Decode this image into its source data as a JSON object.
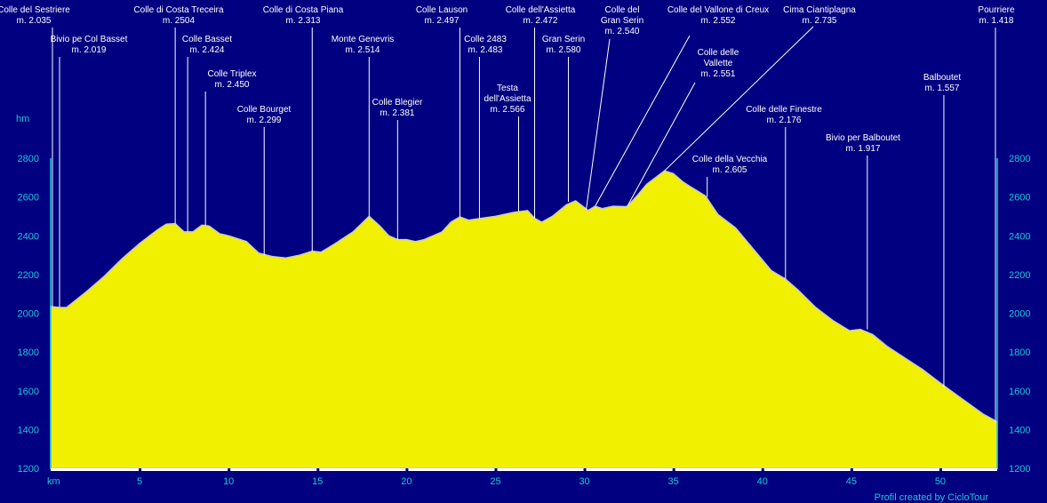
{
  "chart_data": {
    "type": "area",
    "title": "",
    "xlabel": "km",
    "ylabel": "hm",
    "credit": "Profil created by CicloTour",
    "xlim": [
      0,
      53.2
    ],
    "ylim": [
      1200,
      2800
    ],
    "x_ticks": [
      5,
      10,
      15,
      20,
      25,
      30,
      35,
      40,
      45,
      50
    ],
    "y_ticks": [
      1200,
      1400,
      1600,
      1800,
      2000,
      2200,
      2400,
      2600,
      2800
    ],
    "colors": {
      "background": "#000080",
      "fill": "#f0f000",
      "accent": "#19c7d9",
      "text": "#ffffff"
    },
    "profile": {
      "x": [
        0,
        0.5,
        0.9,
        2,
        3,
        4,
        5,
        6,
        6.5,
        7,
        7.5,
        8,
        8.5,
        8.9,
        9.5,
        10,
        11,
        11.7,
        12.5,
        13.2,
        14,
        14.7,
        15.2,
        16,
        17,
        17.9,
        18.5,
        19,
        19.5,
        20,
        20.5,
        21,
        22,
        22.5,
        23,
        23.5,
        24,
        25,
        26,
        26.8,
        27.2,
        27.6,
        28.2,
        29,
        29.5,
        30,
        30.2,
        30.6,
        31,
        31.6,
        32.4,
        33,
        33.5,
        34,
        34.5,
        35,
        35.5,
        36,
        36.8,
        37.5,
        38.5,
        39.5,
        40.5,
        41.3,
        42,
        43,
        44,
        44.9,
        45.5,
        46.2,
        47,
        48,
        49,
        50,
        50.6,
        51.5,
        52.4,
        53.2
      ],
      "y": [
        2035,
        2030,
        2030,
        2110,
        2190,
        2280,
        2360,
        2430,
        2460,
        2462,
        2420,
        2420,
        2455,
        2450,
        2410,
        2400,
        2370,
        2310,
        2292,
        2285,
        2300,
        2320,
        2315,
        2360,
        2420,
        2500,
        2450,
        2400,
        2380,
        2380,
        2370,
        2380,
        2420,
        2470,
        2497,
        2480,
        2487,
        2500,
        2520,
        2530,
        2490,
        2470,
        2500,
        2560,
        2580,
        2545,
        2530,
        2552,
        2540,
        2552,
        2550,
        2610,
        2665,
        2700,
        2735,
        2720,
        2680,
        2650,
        2605,
        2510,
        2440,
        2330,
        2220,
        2176,
        2120,
        2030,
        1960,
        1910,
        1917,
        1890,
        1830,
        1770,
        1710,
        1640,
        1600,
        1540,
        1480,
        1440
      ]
    },
    "markers": [
      {
        "name": "Colle del Sestriere",
        "elev": "m. 2.035",
        "km": 0.1,
        "top": 2035
      },
      {
        "name": "Bivio pe Col Basset",
        "elev": "m. 2.019",
        "km": 0.5,
        "top": 2030
      },
      {
        "name": "Colle di Costa Treceira",
        "elev": "m. 2504",
        "km": 7.0,
        "top": 2462
      },
      {
        "name": "Colle Basset",
        "elev": "m. 2.424",
        "km": 7.7,
        "top": 2420
      },
      {
        "name": "Colle Triplex",
        "elev": "m. 2.450",
        "km": 8.7,
        "top": 2452
      },
      {
        "name": "Colle Bourget",
        "elev": "m. 2.299",
        "km": 12.0,
        "top": 2300
      },
      {
        "name": "Colle di Costa Piana",
        "elev": "m. 2.313",
        "km": 14.7,
        "top": 2320
      },
      {
        "name": "Monte Genevris",
        "elev": "m. 2.514",
        "km": 17.9,
        "top": 2500
      },
      {
        "name": "Colle Blegier",
        "elev": "m. 2.381",
        "km": 19.5,
        "top": 2380
      },
      {
        "name": "Colle Lauson",
        "elev": "m. 2.497",
        "km": 23.0,
        "top": 2497
      },
      {
        "name": "Colle 2483",
        "elev": "m. 2.483",
        "km": 24.1,
        "top": 2487
      },
      {
        "name": "Testa dell'Assietta",
        "elev": "m. 2.566",
        "km": 26.3,
        "top": 2525
      },
      {
        "name": "Colle dell'Assietta",
        "elev": "m. 2.472",
        "km": 27.2,
        "top": 2490
      },
      {
        "name": "Gran Serin",
        "elev": "m. 2.580",
        "km": 29.1,
        "top": 2575
      },
      {
        "name": "Colle del Gran Serin",
        "elev": "m. 2.540",
        "km": 30.1,
        "top": 2535
      },
      {
        "name": "Colle del Vallone di Creux",
        "elev": "m. 2.552",
        "km": 30.6,
        "top": 2552
      },
      {
        "name": "Colle delle Vallette",
        "elev": "m. 2.551",
        "km": 32.4,
        "top": 2550
      },
      {
        "name": "Cima Ciantiplagna",
        "elev": "m. 2.735",
        "km": 34.5,
        "top": 2735
      },
      {
        "name": "Colle della Vecchia",
        "elev": "m. 2.605",
        "km": 36.9,
        "top": 2600
      },
      {
        "name": "Colle delle Finestre",
        "elev": "m. 2.176",
        "km": 41.3,
        "top": 2176
      },
      {
        "name": "Bivio per Balboutet",
        "elev": "m. 1.917",
        "km": 45.9,
        "top": 1917
      },
      {
        "name": "Balboutet",
        "elev": "m. 1.557",
        "km": 50.2,
        "top": 1620
      },
      {
        "name": "Pourriere",
        "elev": "m. 1.418",
        "km": 53.1,
        "top": 1440
      }
    ]
  }
}
